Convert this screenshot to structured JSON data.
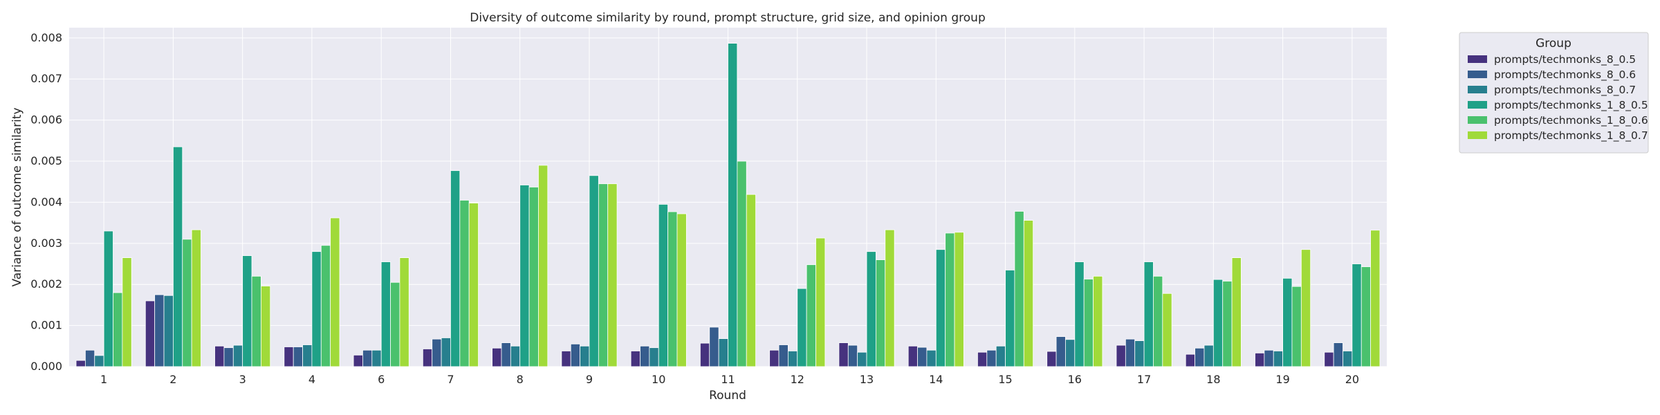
{
  "chart_data": {
    "type": "bar",
    "title": "Diversity of outcome similarity by round, prompt structure, grid size, and opinion group",
    "xlabel": "Round",
    "ylabel": "Variance of outcome similarity",
    "ylim": [
      0,
      0.00825
    ],
    "yticks": [
      "0.000",
      "0.001",
      "0.002",
      "0.003",
      "0.004",
      "0.005",
      "0.006",
      "0.007",
      "0.008"
    ],
    "grid": true,
    "legend_position": "outside-top-right",
    "legend_title": "Group",
    "categories": [
      "1",
      "2",
      "3",
      "4",
      "6",
      "7",
      "8",
      "9",
      "10",
      "11",
      "12",
      "13",
      "14",
      "15",
      "16",
      "17",
      "18",
      "19",
      "20"
    ],
    "series": [
      {
        "name": "prompts/techmonks_8_0.5",
        "color": "#46327e",
        "values": [
          0.00015,
          0.0016,
          0.0005,
          0.00048,
          0.00028,
          0.00043,
          0.00045,
          0.00038,
          0.00038,
          0.00057,
          0.0004,
          0.00058,
          0.0005,
          0.00035,
          0.00037,
          0.00052,
          0.0003,
          0.00033,
          0.00035
        ]
      },
      {
        "name": "prompts/techmonks_8_0.6",
        "color": "#365c8d",
        "values": [
          0.0004,
          0.00175,
          0.00046,
          0.00048,
          0.0004,
          0.00067,
          0.00058,
          0.00055,
          0.0005,
          0.00096,
          0.00053,
          0.00052,
          0.00047,
          0.0004,
          0.00073,
          0.00067,
          0.00045,
          0.0004,
          0.00058
        ]
      },
      {
        "name": "prompts/techmonks_8_0.7",
        "color": "#277f8e",
        "values": [
          0.00027,
          0.00173,
          0.00052,
          0.00053,
          0.0004,
          0.0007,
          0.0005,
          0.0005,
          0.00046,
          0.00068,
          0.00038,
          0.00035,
          0.0004,
          0.0005,
          0.00066,
          0.00063,
          0.00052,
          0.00038,
          0.00038
        ]
      },
      {
        "name": "prompts/techmonks_1_8_0.5",
        "color": "#1fa187",
        "values": [
          0.0033,
          0.00535,
          0.0027,
          0.0028,
          0.00255,
          0.00477,
          0.00442,
          0.00465,
          0.00395,
          0.00787,
          0.0019,
          0.0028,
          0.00285,
          0.00235,
          0.00255,
          0.00255,
          0.00212,
          0.00215,
          0.0025
        ]
      },
      {
        "name": "prompts/techmonks_1_8_0.6",
        "color": "#4ac16d",
        "values": [
          0.0018,
          0.0031,
          0.0022,
          0.00295,
          0.00205,
          0.00405,
          0.00437,
          0.00445,
          0.00377,
          0.005,
          0.00248,
          0.0026,
          0.00325,
          0.00378,
          0.00213,
          0.0022,
          0.00208,
          0.00195,
          0.00243
        ]
      },
      {
        "name": "prompts/techmonks_1_8_0.7",
        "color": "#a0da39",
        "values": [
          0.00265,
          0.00333,
          0.00196,
          0.00362,
          0.00265,
          0.00398,
          0.0049,
          0.00445,
          0.00372,
          0.00419,
          0.00313,
          0.00333,
          0.00327,
          0.00356,
          0.0022,
          0.00178,
          0.00265,
          0.00285,
          0.00332
        ]
      }
    ]
  }
}
